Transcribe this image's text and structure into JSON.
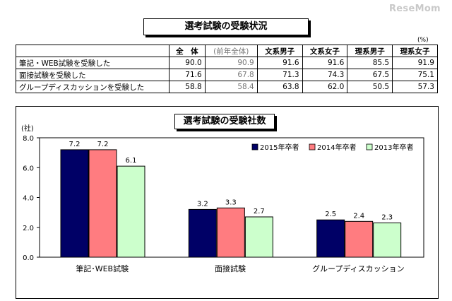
{
  "logo": "ReseMom",
  "table": {
    "title": "選考試験の受験状況",
    "unit": "(%)",
    "headers": [
      "全　体",
      "(前年全体)",
      "文系男子",
      "文系女子",
      "理系男子",
      "理系女子"
    ],
    "rows": [
      {
        "label": "筆記・WEB試験を受験した",
        "values": [
          "90.0",
          "90.9",
          "91.6",
          "91.6",
          "85.5",
          "91.9"
        ]
      },
      {
        "label": "面接試験を受験した",
        "values": [
          "71.6",
          "67.8",
          "71.3",
          "74.3",
          "67.5",
          "75.1"
        ]
      },
      {
        "label": "グループディスカッションを受験した",
        "values": [
          "58.8",
          "58.4",
          "63.8",
          "62.0",
          "50.5",
          "57.3"
        ]
      }
    ]
  },
  "chart_data": {
    "type": "bar",
    "title": "選考試験の受験社数",
    "ylabel": "(社)",
    "xlabel": "",
    "categories": [
      "筆記･WEB試験",
      "面接試験",
      "グループディスカッション"
    ],
    "series": [
      {
        "name": "2015年卒者",
        "values": [
          7.2,
          3.2,
          2.5
        ],
        "color": "#000066"
      },
      {
        "name": "2014年卒者",
        "values": [
          7.2,
          3.3,
          2.4
        ],
        "color": "#ff7c80"
      },
      {
        "name": "2013年卒者",
        "values": [
          6.1,
          2.7,
          2.3
        ],
        "color": "#ccffcc"
      }
    ],
    "ylim": [
      0,
      8
    ],
    "yticks": [
      "0.0",
      "2.0",
      "4.0",
      "6.0",
      "8.0"
    ],
    "grid": false,
    "legend": "top-right"
  }
}
